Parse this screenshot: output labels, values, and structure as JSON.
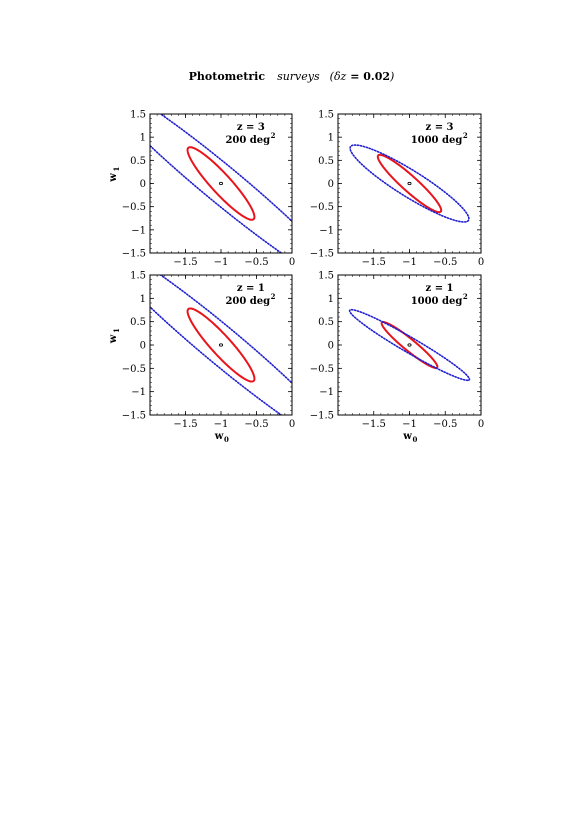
{
  "title": {
    "main": "Photometric",
    "italic": "surveys",
    "paren_open": "(",
    "delta": "δz",
    "eq": " = ",
    "value": "0.02",
    "paren_close": ")"
  },
  "colors": {
    "inner": "#e8141c",
    "outer": "#2020d0",
    "center": "#000000"
  },
  "chart_data": [
    {
      "type": "line",
      "label_z": "z = 3",
      "label_area": "200 deg",
      "label_sup": "2",
      "xlim": [
        -2,
        0
      ],
      "ylim": [
        -1.5,
        1.5
      ],
      "xticks": [
        "-1.5",
        "-1",
        "-0.5",
        "0"
      ],
      "yticks": [
        "1.5",
        "1",
        "0.5",
        "0",
        "-0.5",
        "-1",
        "-1.5"
      ],
      "xlabel": "",
      "ylabel": "w",
      "ylabel_sub": "1",
      "fiducial": [
        -1,
        0
      ],
      "series": [
        {
          "style": "solid",
          "cx": -1,
          "cy": 0,
          "a": 0.9,
          "b": 0.16,
          "angle_deg": -60
        },
        {
          "style": "dotted",
          "cx": -1,
          "cy": 0,
          "a": 2.8,
          "b": 0.32,
          "angle_deg": -52
        }
      ]
    },
    {
      "type": "line",
      "label_z": "z = 3",
      "label_area": "1000 deg",
      "label_sup": "2",
      "xlim": [
        -2,
        0
      ],
      "ylim": [
        -1.5,
        1.5
      ],
      "xticks": [
        "-1.5",
        "-1",
        "-0.5",
        "0"
      ],
      "yticks": [
        "1.5",
        "1",
        "0.5",
        "0",
        "-0.5",
        "-1",
        "-1.5"
      ],
      "xlabel": "",
      "ylabel": "",
      "fiducial": [
        -1,
        0
      ],
      "series": [
        {
          "style": "solid",
          "cx": -1,
          "cy": 0,
          "a": 0.75,
          "b": 0.13,
          "angle_deg": -55
        },
        {
          "style": "dotted",
          "cx": -1,
          "cy": 0,
          "a": 1.15,
          "b": 0.24,
          "angle_deg": -45
        }
      ]
    },
    {
      "type": "line",
      "label_z": "z = 1",
      "label_area": "200 deg",
      "label_sup": "2",
      "xlim": [
        -2,
        0
      ],
      "ylim": [
        -1.5,
        1.5
      ],
      "xticks": [
        "-1.5",
        "-1",
        "-0.5",
        "0"
      ],
      "yticks": [
        "1.5",
        "1",
        "0.5",
        "0",
        "-0.5",
        "-1",
        "-1.5"
      ],
      "xlabel": "w",
      "xlabel_sub": "0",
      "ylabel": "w",
      "ylabel_sub": "1",
      "fiducial": [
        -1,
        0
      ],
      "series": [
        {
          "style": "solid",
          "cx": -1,
          "cy": 0,
          "a": 0.9,
          "b": 0.16,
          "angle_deg": -60
        },
        {
          "style": "dotted",
          "cx": -1,
          "cy": 0,
          "a": 2.8,
          "b": 0.32,
          "angle_deg": -52
        }
      ]
    },
    {
      "type": "line",
      "label_z": "z = 1",
      "label_area": "1000 deg",
      "label_sup": "2",
      "xlim": [
        -2,
        0
      ],
      "ylim": [
        -1.5,
        1.5
      ],
      "xticks": [
        "-1.5",
        "-1",
        "-0.5",
        "0"
      ],
      "yticks": [
        "1.5",
        "1",
        "0.5",
        "0",
        "-0.5",
        "-1",
        "-1.5"
      ],
      "xlabel": "w",
      "xlabel_sub": "0",
      "ylabel": "",
      "fiducial": [
        -1,
        0
      ],
      "series": [
        {
          "style": "solid",
          "cx": -1,
          "cy": 0,
          "a": 0.62,
          "b": 0.1,
          "angle_deg": -52
        },
        {
          "style": "dotted",
          "cx": -1,
          "cy": 0,
          "a": 1.12,
          "b": 0.14,
          "angle_deg": -42
        }
      ]
    }
  ]
}
